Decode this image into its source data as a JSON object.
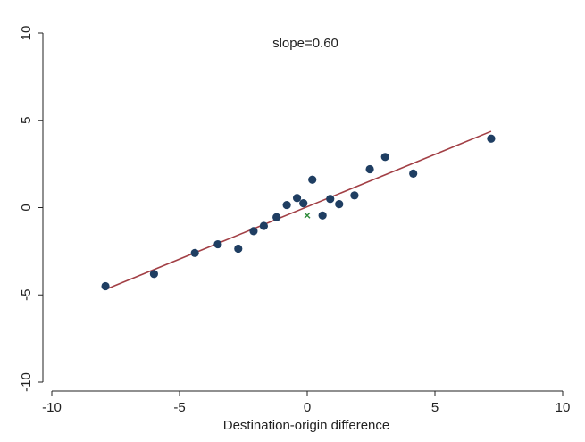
{
  "chart_data": {
    "type": "scatter",
    "title": "",
    "xlabel": "Destination-origin difference",
    "ylabel": "",
    "xlim": [
      -10,
      10
    ],
    "ylim": [
      -10,
      10
    ],
    "xticks": [
      -10,
      -5,
      0,
      5,
      10
    ],
    "yticks": [
      -10,
      -5,
      0,
      5,
      10
    ],
    "grid": false,
    "legend": "none",
    "annotation": "slope=0.60",
    "points": {
      "x": [
        -7.9,
        -6.0,
        -4.4,
        -3.5,
        -2.7,
        -2.1,
        -1.7,
        -1.2,
        -0.8,
        -0.4,
        -0.15,
        0.2,
        0.6,
        0.9,
        1.25,
        1.85,
        2.45,
        3.05,
        4.15,
        7.2
      ],
      "y": [
        -4.5,
        -3.8,
        -2.6,
        -2.1,
        -2.35,
        -1.35,
        -1.05,
        -0.55,
        0.15,
        0.55,
        0.25,
        1.6,
        -0.45,
        0.5,
        0.2,
        0.7,
        2.2,
        2.9,
        1.95,
        3.95
      ]
    },
    "mean_marker": {
      "x": 0.0,
      "y": -0.45,
      "symbol": "x"
    },
    "fit_line": {
      "slope": 0.6,
      "intercept": 0.05,
      "x_range": [
        -7.9,
        7.2
      ]
    },
    "colors": {
      "points": "#1f3e62",
      "fit_line": "#a23f45",
      "mean_marker": "#2e8b3a",
      "axis": "#222222"
    }
  }
}
